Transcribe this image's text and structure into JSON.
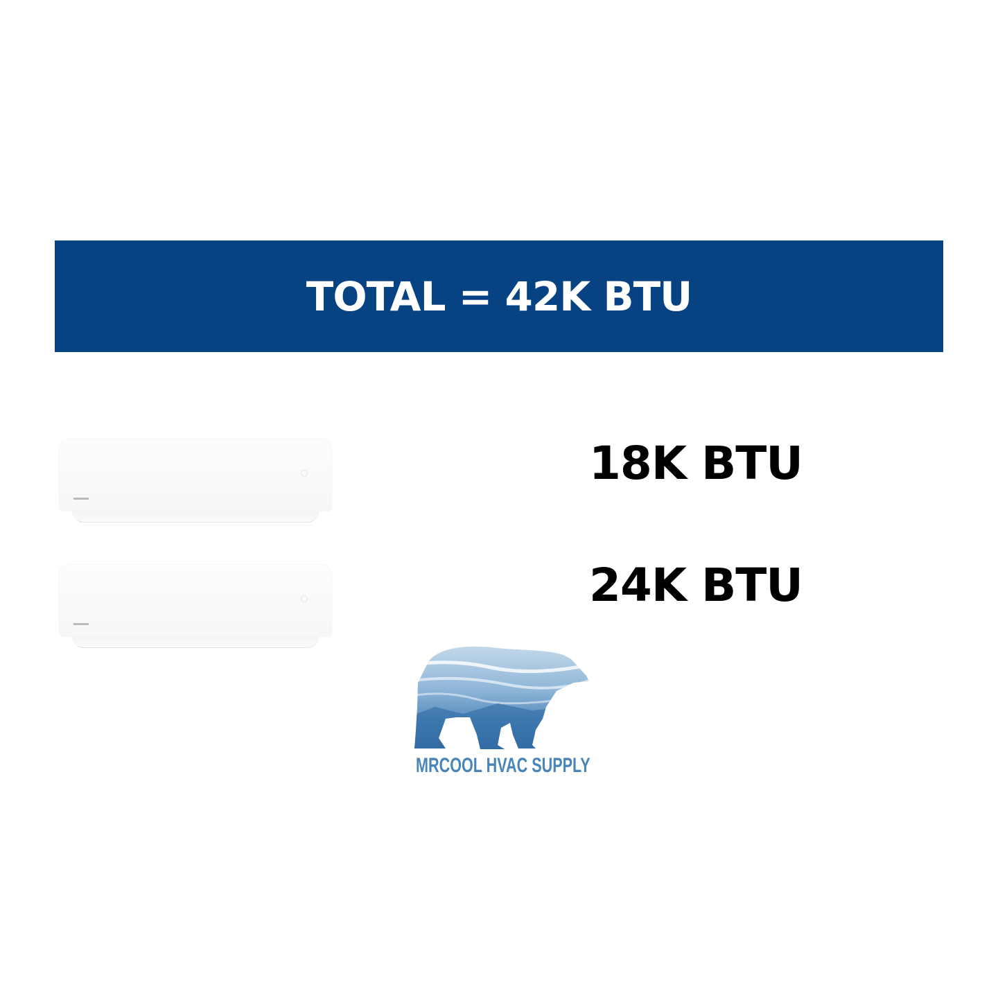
{
  "banner": {
    "title": "TOTAL = 42K BTU",
    "color": "#074283"
  },
  "units": [
    {
      "label": "18K BTU",
      "icon": "wall-mounted-air-handler"
    },
    {
      "label": "24K BTU",
      "icon": "wall-mounted-air-handler"
    }
  ],
  "logo": {
    "text": "MRCOOL HVAC SUPPLY",
    "icon": "polar-bear-logo",
    "color": "#4a85ba"
  }
}
